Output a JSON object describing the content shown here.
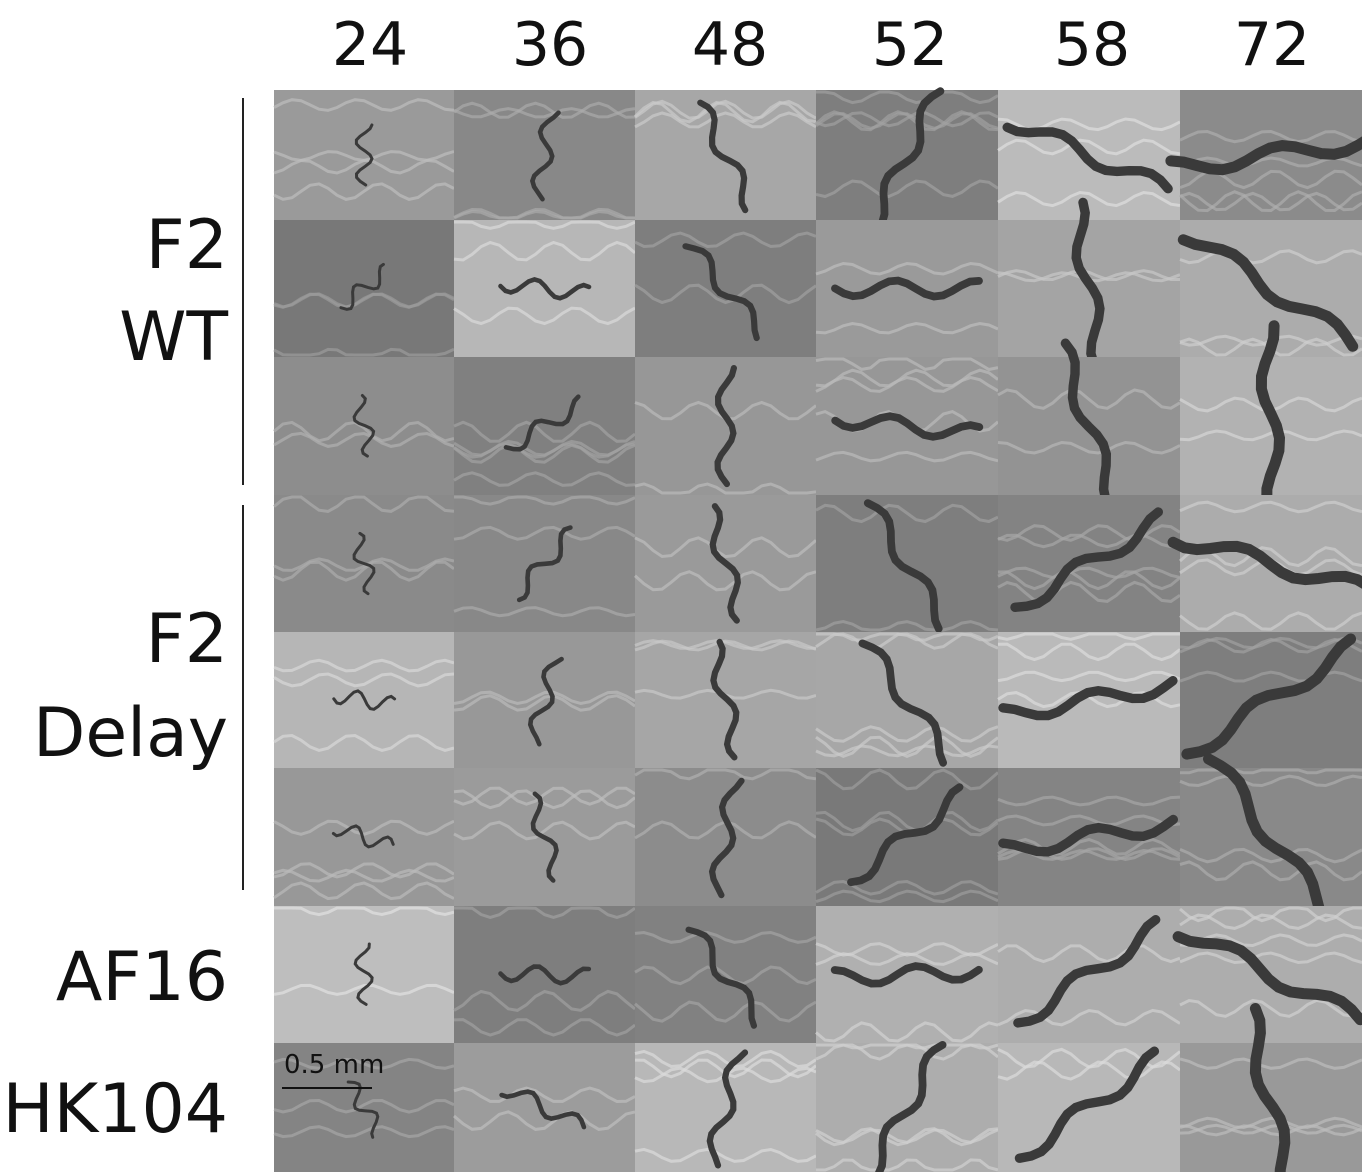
{
  "column_headers": [
    "24",
    "36",
    "48",
    "52",
    "58",
    "72"
  ],
  "row_groups": [
    {
      "label_lines": [
        "F2",
        "WT"
      ]
    },
    {
      "label_lines": [
        "F2",
        "Delay"
      ]
    },
    {
      "label_lines": [
        "AF16"
      ]
    },
    {
      "label_lines": [
        "HK104"
      ]
    }
  ],
  "scale_bar": {
    "label": "0.5 mm"
  }
}
